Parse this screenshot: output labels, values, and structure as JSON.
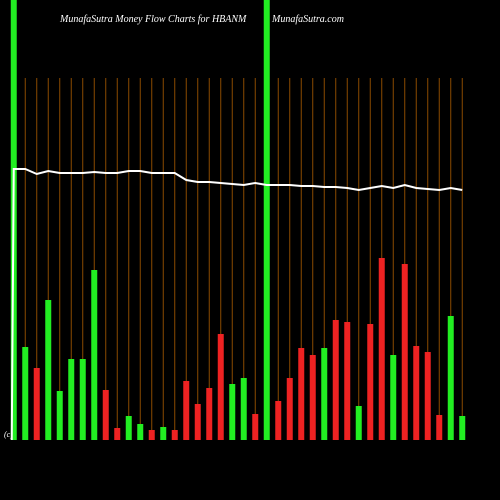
{
  "chart_data": {
    "type": "bar",
    "title": "MunafaSutra  Money Flow  Charts for HBANM",
    "subtitle": "MunafaSutra.com",
    "footnote": "(c)",
    "ylim": [
      0,
      440
    ],
    "values": [
      440,
      93,
      72,
      140,
      49,
      81,
      81,
      170,
      50,
      12,
      24,
      16,
      10,
      13,
      10,
      59,
      36,
      52,
      106,
      56,
      62,
      26,
      440,
      39,
      62,
      92,
      85,
      92,
      120,
      118,
      34,
      116,
      182,
      85,
      176,
      94,
      88,
      25,
      124,
      24
    ],
    "colors": [
      "#22ee22",
      "#22ee22",
      "#ee2222",
      "#22ee22",
      "#22ee22",
      "#22ee22",
      "#22ee22",
      "#22ee22",
      "#ee2222",
      "#ee2222",
      "#22ee22",
      "#22ee22",
      "#ee2222",
      "#22ee22",
      "#ee2222",
      "#ee2222",
      "#ee2222",
      "#ee2222",
      "#ee2222",
      "#22ee22",
      "#22ee22",
      "#ee2222",
      "#22ee22",
      "#ee2222",
      "#ee2222",
      "#ee2222",
      "#ee2222",
      "#22ee22",
      "#ee2222",
      "#ee2222",
      "#22ee22",
      "#ee2222",
      "#ee2222",
      "#22ee22",
      "#ee2222",
      "#ee2222",
      "#ee2222",
      "#ee2222",
      "#22ee22",
      "#22ee22"
    ],
    "line": {
      "color": "#ffffff",
      "values": [
        271,
        271,
        266,
        269,
        267,
        267,
        267,
        268,
        267,
        267,
        269,
        269,
        267,
        267,
        267,
        260,
        258,
        258,
        257,
        256,
        255,
        257,
        255,
        255,
        255,
        254,
        254,
        253,
        253,
        252,
        250,
        252,
        254,
        252,
        255,
        252,
        251,
        250,
        252,
        250
      ]
    },
    "gridline_color": "#8a4a00"
  }
}
